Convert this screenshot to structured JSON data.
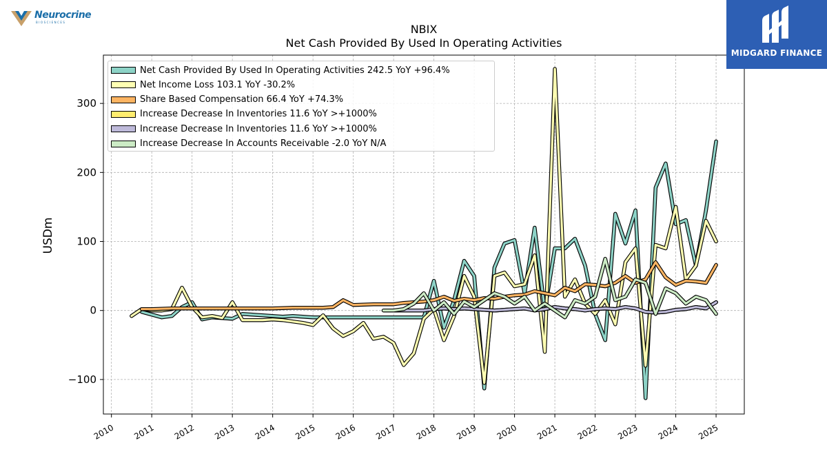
{
  "header": {
    "ticker": "NBIX",
    "subtitle": "Net Cash Provided By Used In Operating Activities"
  },
  "logo": {
    "company": "Neurocrine",
    "company_sub": "BIOSCIENCES",
    "brand": "MIDGARD FINANCE",
    "brand_color": "#2d5fb4"
  },
  "chart_data": {
    "type": "line",
    "title": "NBIX",
    "subtitle": "Net Cash Provided By Used In Operating Activities",
    "ylabel": "USDm",
    "xlim": [
      2009.8,
      2025.7
    ],
    "ylim": [
      -150,
      370
    ],
    "yticks": [
      -100,
      0,
      100,
      200,
      300
    ],
    "ytick_labels": [
      "−100",
      "0",
      "100",
      "200",
      "300"
    ],
    "xticks": [
      2010,
      2011,
      2012,
      2013,
      2014,
      2015,
      2016,
      2017,
      2018,
      2019,
      2020,
      2021,
      2022,
      2023,
      2024,
      2025
    ],
    "grid": true,
    "legend_position": "top-left",
    "series": [
      {
        "name": "Net Cash Provided By Used In Operating Activities  242.5 YoY +96.4%",
        "color": "#8dd3c7",
        "x": [
          2010.75,
          2011.0,
          2011.25,
          2011.5,
          2011.75,
          2012.0,
          2012.25,
          2012.5,
          2012.75,
          2013.0,
          2013.25,
          2013.5,
          2013.75,
          2014.0,
          2014.25,
          2014.5,
          2014.75,
          2015.0,
          2015.25,
          2015.5,
          2015.75,
          2016.0,
          2016.25,
          2016.5,
          2016.75,
          2017.0,
          2017.25,
          2017.5,
          2017.75,
          2018.0,
          2018.25,
          2018.5,
          2018.75,
          2019.0,
          2019.25,
          2019.5,
          2019.75,
          2020.0,
          2020.25,
          2020.5,
          2020.75,
          2021.0,
          2021.25,
          2021.5,
          2021.75,
          2022.0,
          2022.25,
          2022.5,
          2022.75,
          2023.0,
          2023.25,
          2023.5,
          2023.75,
          2024.0,
          2024.25,
          2024.5,
          2024.75,
          2025.0
        ],
        "y": [
          -2,
          -6,
          -10,
          -8,
          5,
          12,
          -13,
          -10,
          -11,
          -12,
          -5,
          -6,
          -7,
          -8,
          -9,
          -8,
          -9,
          -10,
          -10,
          -10,
          -10,
          -10,
          -10,
          -10,
          -10,
          -10,
          -10,
          -10,
          -10,
          43,
          -25,
          15,
          72,
          50,
          -113,
          62,
          97,
          102,
          25,
          120,
          0,
          90,
          90,
          104,
          65,
          -5,
          -43,
          140,
          97,
          145,
          -127,
          178,
          213,
          125,
          131,
          65,
          145,
          245
        ]
      },
      {
        "name": "Net Income Loss  103.1 YoY -30.2%",
        "color": "#ffffb3",
        "x": [
          2010.5,
          2010.75,
          2011.0,
          2011.25,
          2011.5,
          2011.75,
          2012.0,
          2012.25,
          2012.5,
          2012.75,
          2013.0,
          2013.25,
          2013.5,
          2013.75,
          2014.0,
          2014.25,
          2014.5,
          2014.75,
          2015.0,
          2015.25,
          2015.5,
          2015.75,
          2016.0,
          2016.25,
          2016.5,
          2016.75,
          2017.0,
          2017.25,
          2017.5,
          2017.75,
          2018.0,
          2018.25,
          2018.5,
          2018.75,
          2019.0,
          2019.25,
          2019.5,
          2019.75,
          2020.0,
          2020.25,
          2020.5,
          2020.75,
          2021.0,
          2021.25,
          2021.5,
          2021.75,
          2022.0,
          2022.25,
          2022.5,
          2022.75,
          2023.0,
          2023.25,
          2023.5,
          2023.75,
          2024.0,
          2024.25,
          2024.5,
          2024.75,
          2025.0
        ],
        "y": [
          -8,
          2,
          0,
          0,
          2,
          33,
          5,
          -10,
          -8,
          -11,
          12,
          -14,
          -14,
          -14,
          -13,
          -14,
          -16,
          -18,
          -21,
          -7,
          -26,
          -37,
          -30,
          -18,
          -41,
          -38,
          -47,
          -79,
          -62,
          -12,
          2,
          -43,
          -8,
          50,
          20,
          -105,
          50,
          55,
          35,
          38,
          80,
          -60,
          350,
          20,
          45,
          10,
          -5,
          15,
          -20,
          70,
          90,
          -80,
          95,
          90,
          150,
          45,
          65,
          130,
          100
        ]
      },
      {
        "name": "Share Based Compensation  66.4 YoY +74.3%",
        "color": "#fdb462",
        "x": [
          2010.75,
          2011.0,
          2011.5,
          2012.0,
          2012.5,
          2013.0,
          2013.5,
          2014.0,
          2014.5,
          2015.0,
          2015.25,
          2015.5,
          2015.75,
          2016.0,
          2016.5,
          2017.0,
          2017.25,
          2017.5,
          2017.75,
          2018.0,
          2018.25,
          2018.5,
          2018.75,
          2019.0,
          2019.25,
          2019.5,
          2019.75,
          2020.0,
          2020.25,
          2020.5,
          2020.75,
          2021.0,
          2021.25,
          2021.5,
          2021.75,
          2022.0,
          2022.25,
          2022.5,
          2022.75,
          2023.0,
          2023.25,
          2023.5,
          2023.75,
          2024.0,
          2024.25,
          2024.5,
          2024.75,
          2025.0
        ],
        "y": [
          2,
          2,
          3,
          3,
          3,
          3,
          3,
          3,
          4,
          4,
          4,
          5,
          15,
          8,
          9,
          9,
          11,
          12,
          13,
          15,
          20,
          14,
          17,
          15,
          18,
          17,
          20,
          22,
          23,
          28,
          25,
          22,
          33,
          28,
          38,
          37,
          35,
          40,
          50,
          40,
          45,
          70,
          48,
          37,
          43,
          42,
          40,
          66
        ]
      },
      {
        "name": "Increase Decrease In Inventories  11.6 YoY >+1000%",
        "color": "#ffed6f",
        "x": [
          2017.0,
          2017.25,
          2017.5,
          2017.75,
          2018.0,
          2018.25,
          2018.5,
          2018.75,
          2019.0,
          2019.25,
          2019.5,
          2019.75,
          2020.0,
          2020.25,
          2020.5,
          2020.75,
          2021.0,
          2021.25,
          2021.5,
          2021.75,
          2022.0,
          2022.25,
          2022.5,
          2022.75,
          2023.0,
          2023.25,
          2023.5,
          2023.75,
          2024.0,
          2024.25,
          2024.5,
          2024.75,
          2025.0
        ],
        "y": [
          0,
          0,
          0,
          0,
          2,
          3,
          2,
          3,
          2,
          1,
          0,
          1,
          2,
          3,
          0,
          2,
          5,
          3,
          2,
          0,
          2,
          3,
          2,
          5,
          3,
          -2,
          -3,
          -2,
          1,
          2,
          5,
          3,
          12
        ]
      },
      {
        "name": "Increase Decrease In Inventories  11.6 YoY >+1000%",
        "color": "#bebada",
        "x": [
          2017.0,
          2017.25,
          2017.5,
          2017.75,
          2018.0,
          2018.25,
          2018.5,
          2018.75,
          2019.0,
          2019.25,
          2019.5,
          2019.75,
          2020.0,
          2020.25,
          2020.5,
          2020.75,
          2021.0,
          2021.25,
          2021.5,
          2021.75,
          2022.0,
          2022.25,
          2022.5,
          2022.75,
          2023.0,
          2023.25,
          2023.5,
          2023.75,
          2024.0,
          2024.25,
          2024.5,
          2024.75,
          2025.0
        ],
        "y": [
          0,
          0,
          0,
          0,
          2,
          3,
          2,
          3,
          2,
          1,
          0,
          1,
          2,
          3,
          0,
          2,
          5,
          3,
          2,
          0,
          2,
          3,
          2,
          5,
          3,
          -2,
          -3,
          -2,
          1,
          2,
          5,
          3,
          12
        ]
      },
      {
        "name": "Increase Decrease In Accounts Receivable  -2.0 YoY N/A",
        "color": "#ccebc5",
        "x": [
          2016.75,
          2017.0,
          2017.25,
          2017.5,
          2017.75,
          2018.0,
          2018.25,
          2018.5,
          2018.75,
          2019.0,
          2019.25,
          2019.5,
          2019.75,
          2020.0,
          2020.25,
          2020.5,
          2020.75,
          2021.0,
          2021.25,
          2021.5,
          2021.75,
          2022.0,
          2022.25,
          2022.5,
          2022.75,
          2023.0,
          2023.25,
          2023.5,
          2023.75,
          2024.0,
          2024.25,
          2024.5,
          2024.75,
          2025.0
        ],
        "y": [
          0,
          0,
          2,
          10,
          25,
          0,
          12,
          -5,
          13,
          5,
          15,
          25,
          20,
          10,
          20,
          0,
          10,
          0,
          -10,
          15,
          10,
          20,
          75,
          15,
          20,
          45,
          40,
          -5,
          32,
          25,
          10,
          20,
          15,
          -5
        ]
      }
    ]
  }
}
